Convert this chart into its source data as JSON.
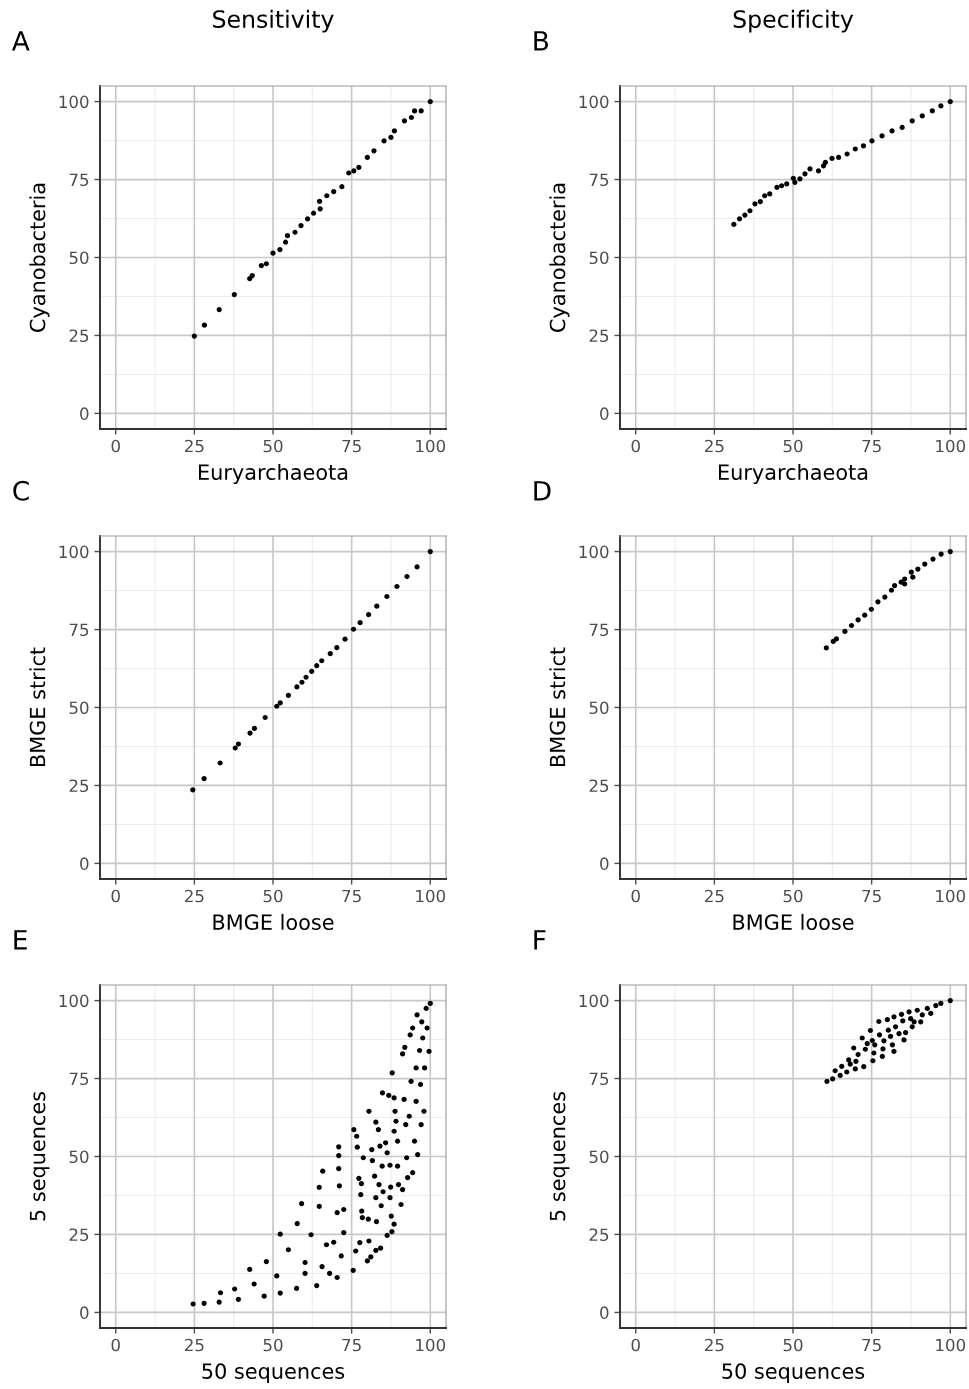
{
  "chart_data": [
    {
      "type": "scatter",
      "title": "Sensitivity",
      "xlabel": "Euryarchaeota",
      "ylabel": "Cyanobacteria",
      "annotations": [
        "A"
      ],
      "xlim": [
        -5,
        105
      ],
      "ylim": [
        -5,
        105
      ],
      "xticks": [
        0,
        25,
        50,
        75,
        100
      ],
      "yticks": [
        0,
        25,
        50,
        75,
        100
      ],
      "grid": true,
      "series": [
        {
          "color": "#000000",
          "x": [
            25,
            28.2,
            32.9,
            37.7,
            42.6,
            43.4,
            46.3,
            47.9,
            50,
            52.2,
            54,
            54.6,
            57,
            58.9,
            61,
            62.9,
            65,
            64.8,
            67.1,
            69.3,
            71.9,
            74.1,
            75.7,
            77.3,
            80,
            82.1,
            85.3,
            87.5,
            88.6,
            91.8,
            94,
            95,
            97.1,
            100
          ],
          "values": [
            24.8,
            28.3,
            33.3,
            38.1,
            43.2,
            44.2,
            47.4,
            48,
            51.4,
            52.5,
            54.9,
            57,
            58.1,
            60.2,
            62.4,
            64.2,
            65.6,
            68,
            69.8,
            71.1,
            72.7,
            77.1,
            77.8,
            78.9,
            82.1,
            84.2,
            87.4,
            88.5,
            90.6,
            93.8,
            94.9,
            97,
            97,
            100
          ]
        }
      ]
    },
    {
      "type": "scatter",
      "title": "Specificity",
      "xlabel": "Euryarchaeota",
      "ylabel": "Cyanobacteria",
      "annotations": [
        "B"
      ],
      "xlim": [
        -5,
        105
      ],
      "ylim": [
        -5,
        105
      ],
      "xticks": [
        0,
        25,
        50,
        75,
        100
      ],
      "yticks": [
        0,
        25,
        50,
        75,
        100
      ],
      "grid": true,
      "series": [
        {
          "color": "#000000",
          "x": [
            31.2,
            33.0,
            34.7,
            36.3,
            37.9,
            39.6,
            41.0,
            42.6,
            44.9,
            46.4,
            48.0,
            50.1,
            50.6,
            52.2,
            53.8,
            55.4,
            58.1,
            59.7,
            60.3,
            62.4,
            64.5,
            67.2,
            69.8,
            72.4,
            75.1,
            78.3,
            81.5,
            84.7,
            87.9,
            91.1,
            94.3,
            97.0,
            100
          ],
          "values": [
            60.6,
            62.4,
            63.6,
            65.0,
            67.2,
            67.9,
            69.8,
            70.4,
            72.5,
            73.0,
            73.6,
            75.4,
            74.1,
            75.2,
            76.8,
            78.4,
            77.8,
            79.4,
            80.5,
            81.8,
            82.1,
            83.2,
            84.8,
            85.8,
            87.4,
            89.0,
            90.6,
            91.7,
            93.8,
            95.4,
            97.0,
            98.6,
            100
          ]
        }
      ]
    },
    {
      "type": "scatter",
      "xlabel": "BMGE loose",
      "ylabel": "BMGE strict",
      "annotations": [
        "C"
      ],
      "xlim": [
        -5,
        105
      ],
      "ylim": [
        -5,
        105
      ],
      "xticks": [
        0,
        25,
        50,
        75,
        100
      ],
      "yticks": [
        0,
        25,
        50,
        75,
        100
      ],
      "grid": true,
      "series": [
        {
          "color": "#000000",
          "x": [
            24.5,
            28.1,
            33.2,
            38,
            39,
            42.7,
            44.1,
            47.5,
            51.2,
            52.3,
            54.9,
            57.6,
            59.2,
            60.5,
            62.3,
            63.9,
            65.5,
            68.2,
            70.3,
            72.9,
            75.6,
            77.7,
            80.4,
            83,
            86.2,
            89.4,
            92.6,
            95.8,
            100
          ],
          "values": [
            23.6,
            27.2,
            32.2,
            37,
            38.3,
            41.8,
            43.3,
            46.8,
            50.4,
            51.5,
            53.9,
            56.6,
            58.1,
            59.7,
            61.6,
            63.4,
            65,
            67.3,
            69.2,
            71.9,
            75.1,
            77.2,
            79.8,
            82.5,
            85.6,
            88.8,
            92,
            95.1,
            100
          ]
        }
      ]
    },
    {
      "type": "scatter",
      "xlabel": "BMGE loose",
      "ylabel": "BMGE strict",
      "annotations": [
        "D"
      ],
      "xlim": [
        -5,
        105
      ],
      "ylim": [
        -5,
        105
      ],
      "xticks": [
        0,
        25,
        50,
        75,
        100
      ],
      "yticks": [
        0,
        25,
        50,
        75,
        100
      ],
      "grid": true,
      "series": [
        {
          "color": "#000000",
          "x": [
            60.6,
            62.8,
            63.8,
            66.5,
            68.6,
            70.7,
            72.8,
            74.9,
            77.0,
            79.2,
            81.3,
            82.3,
            84.4,
            85.5,
            85.5,
            87.6,
            88.1,
            89.7,
            91.9,
            94.5,
            97.1,
            100
          ],
          "values": [
            69.1,
            71.2,
            72.0,
            74.4,
            76.3,
            78.1,
            79.6,
            81.5,
            83.9,
            85.4,
            87.6,
            89.1,
            90.2,
            91.2,
            89.6,
            93.4,
            91.8,
            94.4,
            96,
            97.6,
            99.2,
            100
          ]
        }
      ]
    },
    {
      "type": "scatter",
      "xlabel": "50 sequences",
      "ylabel": "5 sequences",
      "annotations": [
        "E"
      ],
      "xlim": [
        -5,
        105
      ],
      "ylim": [
        -5,
        105
      ],
      "xticks": [
        0,
        25,
        50,
        75,
        100
      ],
      "yticks": [
        0,
        25,
        50,
        75,
        100
      ],
      "grid": true,
      "series": [
        {
          "color": "#000000",
          "x": [
            24.6,
            28.1,
            32.9,
            33.3,
            37.8,
            39.0,
            42.6,
            44.0,
            47.2,
            47.9,
            51.2,
            52.3,
            52.3,
            54.9,
            57.5,
            57.7,
            59.1,
            60.2,
            60.2,
            62.1,
            63.9,
            64.7,
            64.7,
            65.6,
            65.8,
            67.0,
            68.0,
            69.3,
            70.4,
            70.4,
            70.9,
            70.9,
            70.9,
            71.1,
            71.7,
            72.5,
            72.5,
            75.7,
            75.5,
            76.6,
            76.3,
            76.8,
            77.3,
            77.6,
            77.9,
            78.1,
            78.2,
            78.4,
            78.7,
            80,
            80.5,
            80.3,
            80.5,
            81.1,
            81.4,
            81.6,
            82.3,
            82.7,
            82.7,
            82.7,
            82.9,
            83.5,
            83.7,
            84.0,
            84.2,
            84.4,
            84.7,
            84.8,
            85.0,
            85.8,
            86.3,
            86.3,
            86.8,
            87.2,
            87.2,
            87.4,
            87.6,
            87.8,
            87.9,
            88.5,
            88.5,
            88.5,
            88.8,
            89.1,
            89.6,
            89.6,
            89.9,
            90.7,
            91.2,
            91.2,
            91.7,
            91.9,
            92.2,
            92.5,
            92.8,
            93.3,
            93.6,
            93.9,
            94.4,
            94.4,
            95.0,
            95.5,
            95.5,
            95.8,
            96.0,
            96.6,
            96.9,
            97.1,
            97.3,
            97.6,
            98.0,
            98.2,
            98.7,
            99.0,
            99.6,
            100
          ],
          "values": [
            2.7,
            2.9,
            3.3,
            6.3,
            7.5,
            4.2,
            13.8,
            9.1,
            5.2,
            16.3,
            11.7,
            25.1,
            6.2,
            20.1,
            7.7,
            28.5,
            34.9,
            16.0,
            12.5,
            24.9,
            8.6,
            40.1,
            34.0,
            14.7,
            45.3,
            21.7,
            12.5,
            22.5,
            32.0,
            11.2,
            53.1,
            50.3,
            46.1,
            40.6,
            18.1,
            33.0,
            25.6,
            58.6,
            13.5,
            56.5,
            19.7,
            53.0,
            43.0,
            22.4,
            37.8,
            41.3,
            32.5,
            30.4,
            49.6,
            16.5,
            64.5,
            29.9,
            22.9,
            17.8,
            52.2,
            48.7,
            43.7,
            61.0,
            36.8,
            19.9,
            29.1,
            58.6,
            41.0,
            53.3,
            20.6,
            34.2,
            46.9,
            70.4,
            38.7,
            54.4,
            51.2,
            24.7,
            69.6,
            36.8,
            47.2,
            40.2,
            30.9,
            25.9,
            76.8,
            68.8,
            58.1,
            28.3,
            64.5,
            61.3,
            54.9,
            46.9,
            41.0,
            34.6,
            82.9,
            39.4,
            68.3,
            85.0,
            60.2,
            49.6,
            43.2,
            62.9,
            89.0,
            74.1,
            44.8,
            91.2,
            54.9,
            67.7,
            78.4,
            95.4,
            50.6,
            84.0,
            73.1,
            60.2,
            93.2,
            88.0,
            64.5,
            78.4,
            97.5,
            91.2,
            83.7,
            99.1
          ]
        }
      ]
    },
    {
      "type": "scatter",
      "xlabel": "50 sequences",
      "ylabel": "5 sequences",
      "annotations": [
        "F"
      ],
      "xlim": [
        -5,
        105
      ],
      "ylim": [
        -5,
        105
      ],
      "xticks": [
        0,
        25,
        50,
        75,
        100
      ],
      "yticks": [
        0,
        25,
        50,
        75,
        100
      ],
      "grid": true,
      "series": [
        {
          "color": "#000000",
          "x": [
            60.8,
            62.6,
            63.4,
            65.0,
            65.5,
            67.1,
            67.7,
            68.2,
            69.8,
            70.0,
            69.3,
            70.7,
            72.0,
            72.5,
            73.0,
            73.6,
            74.6,
            75.2,
            75.4,
            75.7,
            76.0,
            77.3,
            77.5,
            78.4,
            78.6,
            78.9,
            80.0,
            80.3,
            81.0,
            81.6,
            82.1,
            82.1,
            82.6,
            83.7,
            84.5,
            84.9,
            85.3,
            85.8,
            86.9,
            87.4,
            87.9,
            88.5,
            89.5,
            90.6,
            91.1,
            92.7,
            93.8,
            95.4,
            97.0,
            100
          ],
          "values": [
            74.1,
            74.9,
            77.5,
            76.0,
            78.9,
            77.1,
            81.0,
            79.6,
            78.1,
            80.5,
            84.8,
            82.7,
            88.0,
            78.8,
            84.4,
            86.2,
            90.4,
            87.2,
            80.7,
            83.2,
            85.8,
            93.3,
            89.0,
            82.1,
            84.5,
            87.1,
            93.9,
            90.5,
            88.5,
            85.8,
            83.7,
            94.8,
            91.6,
            89.4,
            95.6,
            93.5,
            87.4,
            89.7,
            96.4,
            94.2,
            91.6,
            93.2,
            96.9,
            93.2,
            95.4,
            97.5,
            95.9,
            98.4,
            99.1,
            100
          ]
        }
      ]
    }
  ]
}
